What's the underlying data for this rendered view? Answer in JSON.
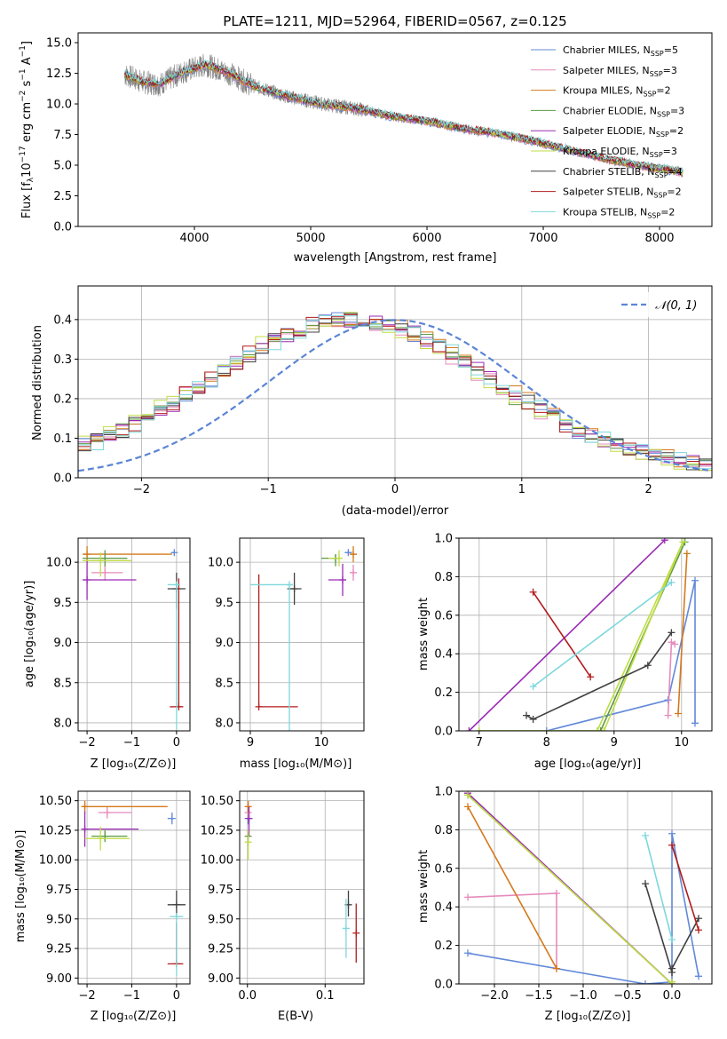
{
  "chart_data": [
    {
      "id": "spectrum",
      "type": "line",
      "title": "PLATE=1211, MJD=52964, FIBERID=0567, z=0.125",
      "xlabel": "wavelength [Angstrom, rest frame]",
      "ylabel": "Flux [f_λ10^-17 erg cm^-2 s^-1 A^-1]",
      "xlim": [
        3000,
        8450
      ],
      "ylim": [
        0,
        15.8
      ],
      "xticks": [
        "4000",
        "5000",
        "6000",
        "7000",
        "8000"
      ],
      "yticks": [
        "0.0",
        "2.5",
        "5.0",
        "7.5",
        "10.0",
        "12.5",
        "15.0"
      ],
      "grid": false,
      "legend_position": "top-right",
      "data_trend": {
        "x": [
          3400,
          3550,
          3700,
          3900,
          4100,
          4300,
          4500,
          4800,
          5100,
          5400,
          5700,
          6000,
          6300,
          6600,
          6900,
          7200,
          7500,
          7800,
          8100,
          8200
        ],
        "y": [
          12.4,
          11.8,
          11.6,
          12.6,
          13.2,
          12.5,
          11.5,
          10.6,
          10.0,
          9.6,
          9.0,
          8.6,
          8.0,
          7.6,
          7.0,
          6.3,
          5.6,
          5.0,
          4.6,
          4.4
        ]
      },
      "series": [
        {
          "name": "Chabrier MILES, N_SSP=5",
          "color": "#6289d9"
        },
        {
          "name": "Salpeter MILES, N_SSP=3",
          "color": "#e58bbc"
        },
        {
          "name": "Kroupa MILES, N_SSP=2",
          "color": "#d4791a"
        },
        {
          "name": "Chabrier ELODIE, N_SSP=3",
          "color": "#5c9a44"
        },
        {
          "name": "Salpeter ELODIE, N_SSP=2",
          "color": "#9a2bb4"
        },
        {
          "name": "Kroupa ELODIE, N_SSP=3",
          "color": "#c0dc45"
        },
        {
          "name": "Chabrier STELIB, N_SSP=4",
          "color": "#404040"
        },
        {
          "name": "Salpeter STELIB, N_SSP=2",
          "color": "#b31b1b"
        },
        {
          "name": "Kroupa STELIB, N_SSP=2",
          "color": "#7ed7dc"
        }
      ],
      "data_color": "#808080"
    },
    {
      "id": "residuals",
      "type": "line",
      "xlabel": "(data-model)/error",
      "ylabel": "Normed distribution",
      "xlim": [
        -2.5,
        2.5
      ],
      "ylim": [
        0,
        0.485
      ],
      "xticks": [
        "−2",
        "−1",
        "0",
        "1",
        "2"
      ],
      "yticks": [
        "0.0",
        "0.1",
        "0.2",
        "0.3",
        "0.4"
      ],
      "grid": true,
      "legend_position": "top-right",
      "reference": {
        "name": "𝒩(0, 1)",
        "color": "#5b85d6",
        "mu": 0,
        "sigma": 1
      },
      "series": [
        {
          "name": "Chabrier MILES",
          "color": "#6289d9",
          "shift": 0.0
        },
        {
          "name": "Salpeter MILES",
          "color": "#e58bbc",
          "shift": 0.03
        },
        {
          "name": "Kroupa MILES",
          "color": "#d4791a",
          "shift": -0.04
        },
        {
          "name": "Chabrier ELODIE",
          "color": "#5c9a44",
          "shift": 0.02
        },
        {
          "name": "Salpeter ELODIE",
          "color": "#9a2bb4",
          "shift": -0.02
        },
        {
          "name": "Kroupa ELODIE",
          "color": "#c0dc45",
          "shift": 0.04
        },
        {
          "name": "Chabrier STELIB",
          "color": "#404040",
          "shift": -0.01
        },
        {
          "name": "Salpeter STELIB",
          "color": "#b31b1b",
          "shift": 0.01
        },
        {
          "name": "Kroupa STELIB",
          "color": "#7ed7dc",
          "shift": -0.03
        }
      ]
    },
    {
      "id": "age-vs-Z",
      "type": "scatter",
      "xlabel": "Z [log₁₀(Z/Z⊙)]",
      "ylabel": "age  [log₁₀(age/yr)]",
      "xlim": [
        -2.2,
        0.3
      ],
      "ylim": [
        7.9,
        10.3
      ],
      "xticks": [
        "−2",
        "−1",
        "0"
      ],
      "yticks": [
        "8.0",
        "8.5",
        "9.0",
        "9.5",
        "10.0"
      ],
      "grid": true,
      "points": [
        {
          "color": "#6289d9",
          "x": -0.05,
          "xerr": [
            0.05,
            0.0
          ],
          "y": 10.12,
          "yerr": [
            0.02,
            0.02
          ]
        },
        {
          "color": "#e58bbc",
          "x": -1.6,
          "xerr": [
            0.3,
            0.4
          ],
          "y": 9.87,
          "yerr": [
            0.1,
            0.1
          ]
        },
        {
          "color": "#d4791a",
          "x": -2.0,
          "xerr": [
            0.1,
            1.9
          ],
          "y": 10.1,
          "yerr": [
            0.1,
            0.1
          ]
        },
        {
          "color": "#5c9a44",
          "x": -1.6,
          "xerr": [
            0.5,
            0.5
          ],
          "y": 10.05,
          "yerr": [
            0.1,
            0.1
          ]
        },
        {
          "color": "#9a2bb4",
          "x": -2.0,
          "xerr": [
            0.1,
            1.1
          ],
          "y": 9.78,
          "yerr": [
            0.25,
            0.25
          ]
        },
        {
          "color": "#c0dc45",
          "x": -1.7,
          "xerr": [
            0.4,
            0.7
          ],
          "y": 10.02,
          "yerr": [
            0.2,
            0.1
          ]
        },
        {
          "color": "#404040",
          "x": 0.0,
          "xerr": [
            0.2,
            0.2
          ],
          "y": 9.67,
          "yerr": [
            0.25,
            0.2
          ]
        },
        {
          "color": "#b31b1b",
          "x": 0.05,
          "xerr": [
            0.2,
            0.1
          ],
          "y": 8.2,
          "yerr": [
            0.0,
            1.6
          ]
        },
        {
          "color": "#7ed7dc",
          "x": 0.0,
          "xerr": [
            0.2,
            0.05
          ],
          "y": 9.72,
          "yerr": [
            1.8,
            0.0
          ]
        }
      ]
    },
    {
      "id": "age-vs-mass",
      "type": "scatter",
      "xlabel": "mass [log₁₀(M/M⊙)]",
      "ylabel": "",
      "xlim": [
        8.85,
        10.6
      ],
      "ylim": [
        7.9,
        10.3
      ],
      "xticks": [
        "9",
        "10"
      ],
      "yticks": [
        "8.0",
        "8.5",
        "9.0",
        "9.5",
        "10.0"
      ],
      "grid": true,
      "points": [
        {
          "color": "#6289d9",
          "x": 10.38,
          "xerr": [
            0.05,
            0.05
          ],
          "y": 10.12,
          "yerr": [
            0.03,
            0.03
          ]
        },
        {
          "color": "#e58bbc",
          "x": 10.45,
          "xerr": [
            0.05,
            0.05
          ],
          "y": 9.87,
          "yerr": [
            0.1,
            0.1
          ]
        },
        {
          "color": "#d4791a",
          "x": 10.45,
          "xerr": [
            0.05,
            0.05
          ],
          "y": 10.1,
          "yerr": [
            0.1,
            0.1
          ]
        },
        {
          "color": "#5c9a44",
          "x": 10.2,
          "xerr": [
            0.2,
            0.05
          ],
          "y": 10.05,
          "yerr": [
            0.1,
            0.05
          ]
        },
        {
          "color": "#9a2bb4",
          "x": 10.3,
          "xerr": [
            0.2,
            0.05
          ],
          "y": 9.78,
          "yerr": [
            0.2,
            0.2
          ]
        },
        {
          "color": "#c0dc45",
          "x": 10.25,
          "xerr": [
            0.15,
            0.05
          ],
          "y": 10.05,
          "yerr": [
            0.1,
            0.1
          ]
        },
        {
          "color": "#404040",
          "x": 9.62,
          "xerr": [
            0.1,
            0.1
          ],
          "y": 9.67,
          "yerr": [
            0.2,
            0.2
          ]
        },
        {
          "color": "#b31b1b",
          "x": 9.12,
          "xerr": [
            0.0,
            0.55
          ],
          "y": 8.2,
          "yerr": [
            0.0,
            1.65
          ]
        },
        {
          "color": "#7ed7dc",
          "x": 9.55,
          "xerr": [
            0.55,
            0.05
          ],
          "y": 9.72,
          "yerr": [
            1.85,
            0.0
          ]
        }
      ]
    },
    {
      "id": "weight-vs-age",
      "type": "line",
      "xlabel": "age  [log₁₀(age/yr)]",
      "ylabel": "mass weight",
      "xlim": [
        6.7,
        10.45
      ],
      "ylim": [
        0,
        1.0
      ],
      "xticks": [
        "7",
        "8",
        "9",
        "10"
      ],
      "yticks": [
        "0.0",
        "0.2",
        "0.4",
        "0.6",
        "0.8",
        "1.0"
      ],
      "grid": true,
      "series": [
        {
          "color": "#6289d9",
          "x": [
            8.0,
            9.8,
            10.2,
            10.2
          ],
          "y": [
            0.0,
            0.16,
            0.78,
            0.04
          ]
        },
        {
          "color": "#e58bbc",
          "x": [
            9.8,
            9.85,
            9.9
          ],
          "y": [
            0.08,
            0.46,
            0.45
          ]
        },
        {
          "color": "#d4791a",
          "x": [
            9.95,
            10.08
          ],
          "y": [
            0.09,
            0.92
          ]
        },
        {
          "color": "#5c9a44",
          "x": [
            7.0,
            8.8,
            10.05
          ],
          "y": [
            0.0,
            0.0,
            0.98
          ]
        },
        {
          "color": "#9a2bb4",
          "x": [
            6.85,
            9.75
          ],
          "y": [
            0.0,
            0.99
          ]
        },
        {
          "color": "#c0dc45",
          "x": [
            7.0,
            8.75,
            10.02,
            8.85
          ],
          "y": [
            0.0,
            0.0,
            0.98,
            0.0
          ]
        },
        {
          "color": "#404040",
          "x": [
            7.7,
            7.8,
            9.5,
            9.85
          ],
          "y": [
            0.08,
            0.06,
            0.34,
            0.51
          ]
        },
        {
          "color": "#b31b1b",
          "x": [
            7.8,
            8.65
          ],
          "y": [
            0.72,
            0.28
          ]
        },
        {
          "color": "#7ed7dc",
          "x": [
            7.8,
            9.85
          ],
          "y": [
            0.23,
            0.77
          ]
        }
      ]
    },
    {
      "id": "mass-vs-Z",
      "type": "scatter",
      "xlabel": "Z [log₁₀(Z/Z⊙)]",
      "ylabel": "mass [log₁₀(M/M⊙)]",
      "xlim": [
        -2.2,
        0.3
      ],
      "ylim": [
        8.95,
        10.58
      ],
      "xticks": [
        "−2",
        "−1",
        "0"
      ],
      "yticks": [
        "9.00",
        "9.25",
        "9.50",
        "9.75",
        "10.00",
        "10.25",
        "10.50"
      ],
      "grid": true,
      "points": [
        {
          "color": "#6289d9",
          "x": -0.1,
          "xerr": [
            0.1,
            0.05
          ],
          "y": 10.35,
          "yerr": [
            0.05,
            0.05
          ]
        },
        {
          "color": "#e58bbc",
          "x": -1.55,
          "xerr": [
            0.2,
            0.55
          ],
          "y": 10.4,
          "yerr": [
            0.05,
            0.05
          ]
        },
        {
          "color": "#d4791a",
          "x": -2.05,
          "xerr": [
            0.05,
            1.85
          ],
          "y": 10.45,
          "yerr": [
            0.05,
            0.05
          ]
        },
        {
          "color": "#5c9a44",
          "x": -1.6,
          "xerr": [
            0.3,
            0.5
          ],
          "y": 10.2,
          "yerr": [
            0.05,
            0.05
          ]
        },
        {
          "color": "#9a2bb4",
          "x": -2.05,
          "xerr": [
            0.05,
            1.2
          ],
          "y": 10.26,
          "yerr": [
            0.15,
            0.15
          ]
        },
        {
          "color": "#c0dc45",
          "x": -1.7,
          "xerr": [
            0.35,
            0.65
          ],
          "y": 10.18,
          "yerr": [
            0.1,
            0.1
          ]
        },
        {
          "color": "#404040",
          "x": 0.0,
          "xerr": [
            0.2,
            0.2
          ],
          "y": 9.62,
          "yerr": [
            0.1,
            0.12
          ]
        },
        {
          "color": "#b31b1b",
          "x": 0.0,
          "xerr": [
            0.2,
            0.15
          ],
          "y": 9.12,
          "yerr": [
            0.0,
            0.35
          ]
        },
        {
          "color": "#7ed7dc",
          "x": 0.0,
          "xerr": [
            0.15,
            0.15
          ],
          "y": 9.52,
          "yerr": [
            0.5,
            0.0
          ]
        }
      ]
    },
    {
      "id": "mass-vs-ebv",
      "type": "scatter",
      "xlabel": "E(B-V)",
      "ylabel": "",
      "xlim": [
        -0.01,
        0.15
      ],
      "ylim": [
        8.95,
        10.58
      ],
      "xticks": [
        "0.0",
        "0.1"
      ],
      "yticks": [
        "9.00",
        "9.25",
        "9.50",
        "9.75",
        "10.00",
        "10.25",
        "10.50"
      ],
      "grid": true,
      "points": [
        {
          "color": "#6289d9",
          "x": 0.001,
          "xerr": [
            0,
            0
          ],
          "y": 10.35,
          "yerr": [
            0.05,
            0.05
          ]
        },
        {
          "color": "#e58bbc",
          "x": 0.001,
          "xerr": [
            0,
            0
          ],
          "y": 10.4,
          "yerr": [
            0.05,
            0.05
          ]
        },
        {
          "color": "#d4791a",
          "x": 0.001,
          "xerr": [
            0,
            0
          ],
          "y": 10.45,
          "yerr": [
            0.05,
            0.05
          ]
        },
        {
          "color": "#5c9a44",
          "x": 0.001,
          "xerr": [
            0,
            0
          ],
          "y": 10.2,
          "yerr": [
            0.05,
            0.05
          ]
        },
        {
          "color": "#9a2bb4",
          "x": 0.002,
          "xerr": [
            0,
            0
          ],
          "y": 10.35,
          "yerr": [
            0.15,
            0.1
          ]
        },
        {
          "color": "#c0dc45",
          "x": 0.001,
          "xerr": [
            0,
            0
          ],
          "y": 10.15,
          "yerr": [
            0.15,
            0.1
          ]
        },
        {
          "color": "#404040",
          "x": 0.13,
          "xerr": [
            0,
            0
          ],
          "y": 9.62,
          "yerr": [
            0.1,
            0.12
          ]
        },
        {
          "color": "#b31b1b",
          "x": 0.14,
          "xerr": [
            0,
            0
          ],
          "y": 9.38,
          "yerr": [
            0.25,
            0.25
          ]
        },
        {
          "color": "#7ed7dc",
          "x": 0.127,
          "xerr": [
            0,
            0
          ],
          "y": 9.42,
          "yerr": [
            0.25,
            0.25
          ]
        }
      ]
    },
    {
      "id": "weight-vs-Z",
      "type": "line",
      "xlabel": "Z [log₁₀(Z/Z⊙)]",
      "ylabel": "mass weight",
      "xlim": [
        -2.4,
        0.45
      ],
      "ylim": [
        0,
        1.0
      ],
      "xticks": [
        "−2.0",
        "−1.5",
        "−1.0",
        "−0.5",
        "0.0"
      ],
      "yticks": [
        "0.0",
        "0.2",
        "0.4",
        "0.6",
        "0.8",
        "1.0"
      ],
      "grid": true,
      "series": [
        {
          "color": "#6289d9",
          "x": [
            -2.3,
            -0.3,
            0.0,
            0.0,
            0.3
          ],
          "y": [
            0.16,
            0.0,
            0.01,
            0.78,
            0.04
          ]
        },
        {
          "color": "#e58bbc",
          "x": [
            -2.3,
            -1.3,
            -1.3
          ],
          "y": [
            0.45,
            0.47,
            0.08
          ]
        },
        {
          "color": "#d4791a",
          "x": [
            -2.3,
            -1.3
          ],
          "y": [
            0.92,
            0.08
          ]
        },
        {
          "color": "#5c9a44",
          "x": [
            -2.3,
            0.0
          ],
          "y": [
            0.98,
            0.0
          ]
        },
        {
          "color": "#9a2bb4",
          "x": [
            -2.3,
            0.0
          ],
          "y": [
            0.99,
            0.0
          ]
        },
        {
          "color": "#c0dc45",
          "x": [
            -2.3,
            0.0,
            0.0
          ],
          "y": [
            0.98,
            0.0,
            0.01
          ]
        },
        {
          "color": "#404040",
          "x": [
            -0.3,
            0.0,
            0.0,
            0.3
          ],
          "y": [
            0.52,
            0.06,
            0.08,
            0.34
          ]
        },
        {
          "color": "#b31b1b",
          "x": [
            0.0,
            0.3
          ],
          "y": [
            0.72,
            0.28
          ]
        },
        {
          "color": "#7ed7dc",
          "x": [
            -0.3,
            0.0
          ],
          "y": [
            0.77,
            0.23
          ]
        }
      ]
    }
  ]
}
